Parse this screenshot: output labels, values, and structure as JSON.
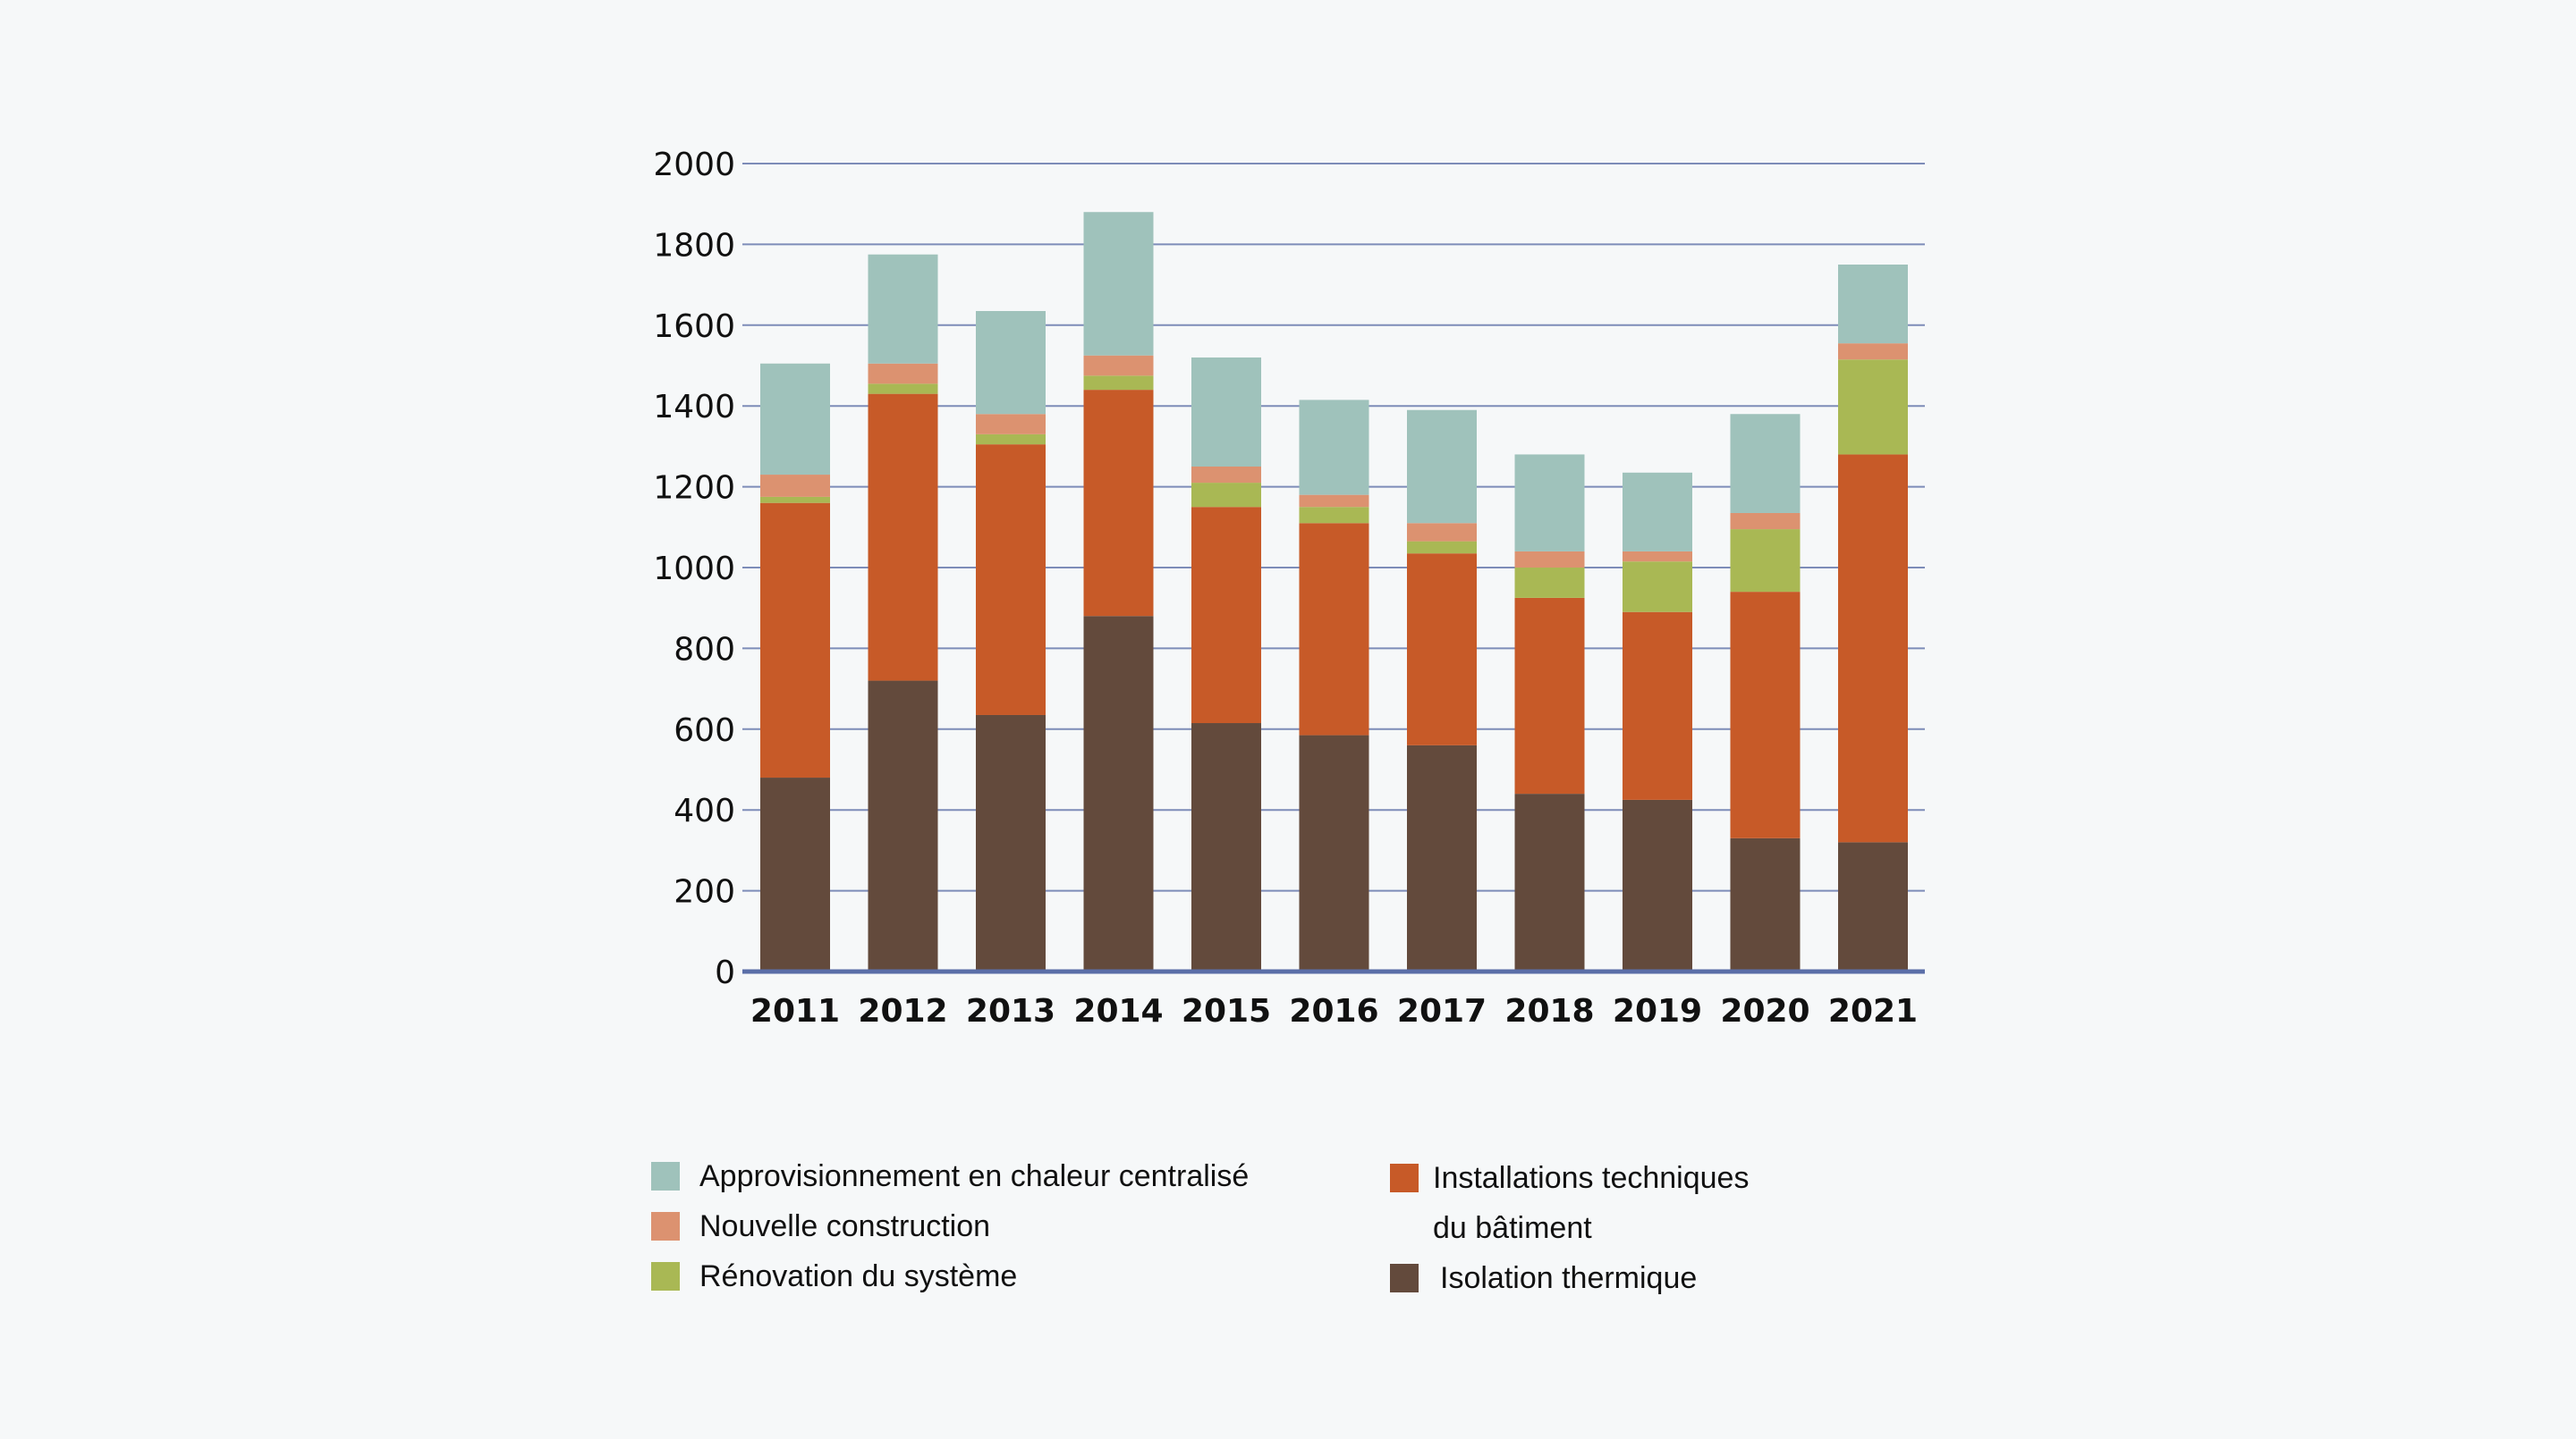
{
  "chart_data": {
    "type": "bar",
    "stacked": true,
    "title": "",
    "xlabel": "",
    "ylabel": "",
    "ylim": [
      0,
      2000
    ],
    "yticks": [
      0,
      200,
      400,
      600,
      800,
      1000,
      1200,
      1400,
      1600,
      1800,
      2000
    ],
    "grid": true,
    "legend_position": "bottom",
    "categories": [
      "2011",
      "2012",
      "2013",
      "2014",
      "2015",
      "2016",
      "2017",
      "2018",
      "2019",
      "2020",
      "2021"
    ],
    "series": [
      {
        "name": "Isolation thermique",
        "color": "#634a3c",
        "values": [
          480,
          720,
          635,
          880,
          615,
          585,
          560,
          440,
          425,
          330,
          320
        ]
      },
      {
        "name": "Installations techniques du bâtiment",
        "color": "#c75a28",
        "values": [
          680,
          710,
          670,
          560,
          535,
          525,
          475,
          485,
          465,
          610,
          960
        ]
      },
      {
        "name": "Rénovation du système",
        "color": "#a9b854",
        "values": [
          15,
          25,
          25,
          35,
          60,
          40,
          30,
          75,
          125,
          155,
          235
        ]
      },
      {
        "name": "Nouvelle construction",
        "color": "#dc9270",
        "values": [
          55,
          50,
          50,
          50,
          40,
          30,
          45,
          40,
          25,
          40,
          40
        ]
      },
      {
        "name": "Approvisionnement en chaleur centralisé",
        "color": "#9fc2bb",
        "values": [
          275,
          270,
          255,
          355,
          270,
          235,
          280,
          240,
          195,
          245,
          195
        ]
      }
    ]
  },
  "legend": {
    "left": [
      {
        "label": "Approvisionnement en chaleur centralisé",
        "color": "#9fc2bb"
      },
      {
        "label": "Nouvelle construction",
        "color": "#dc9270"
      },
      {
        "label": "Rénovation du système",
        "color": "#a9b854"
      }
    ],
    "right": [
      {
        "label_line1": "Installations techniques",
        "label_line2": "du bâtiment",
        "color": "#c75a28"
      },
      {
        "label": "Isolation thermique",
        "color": "#634a3c"
      }
    ]
  },
  "colors": {
    "background": "#f6f8f9",
    "gridline": "#7d8cb8",
    "axis": "#5a6ea8"
  }
}
